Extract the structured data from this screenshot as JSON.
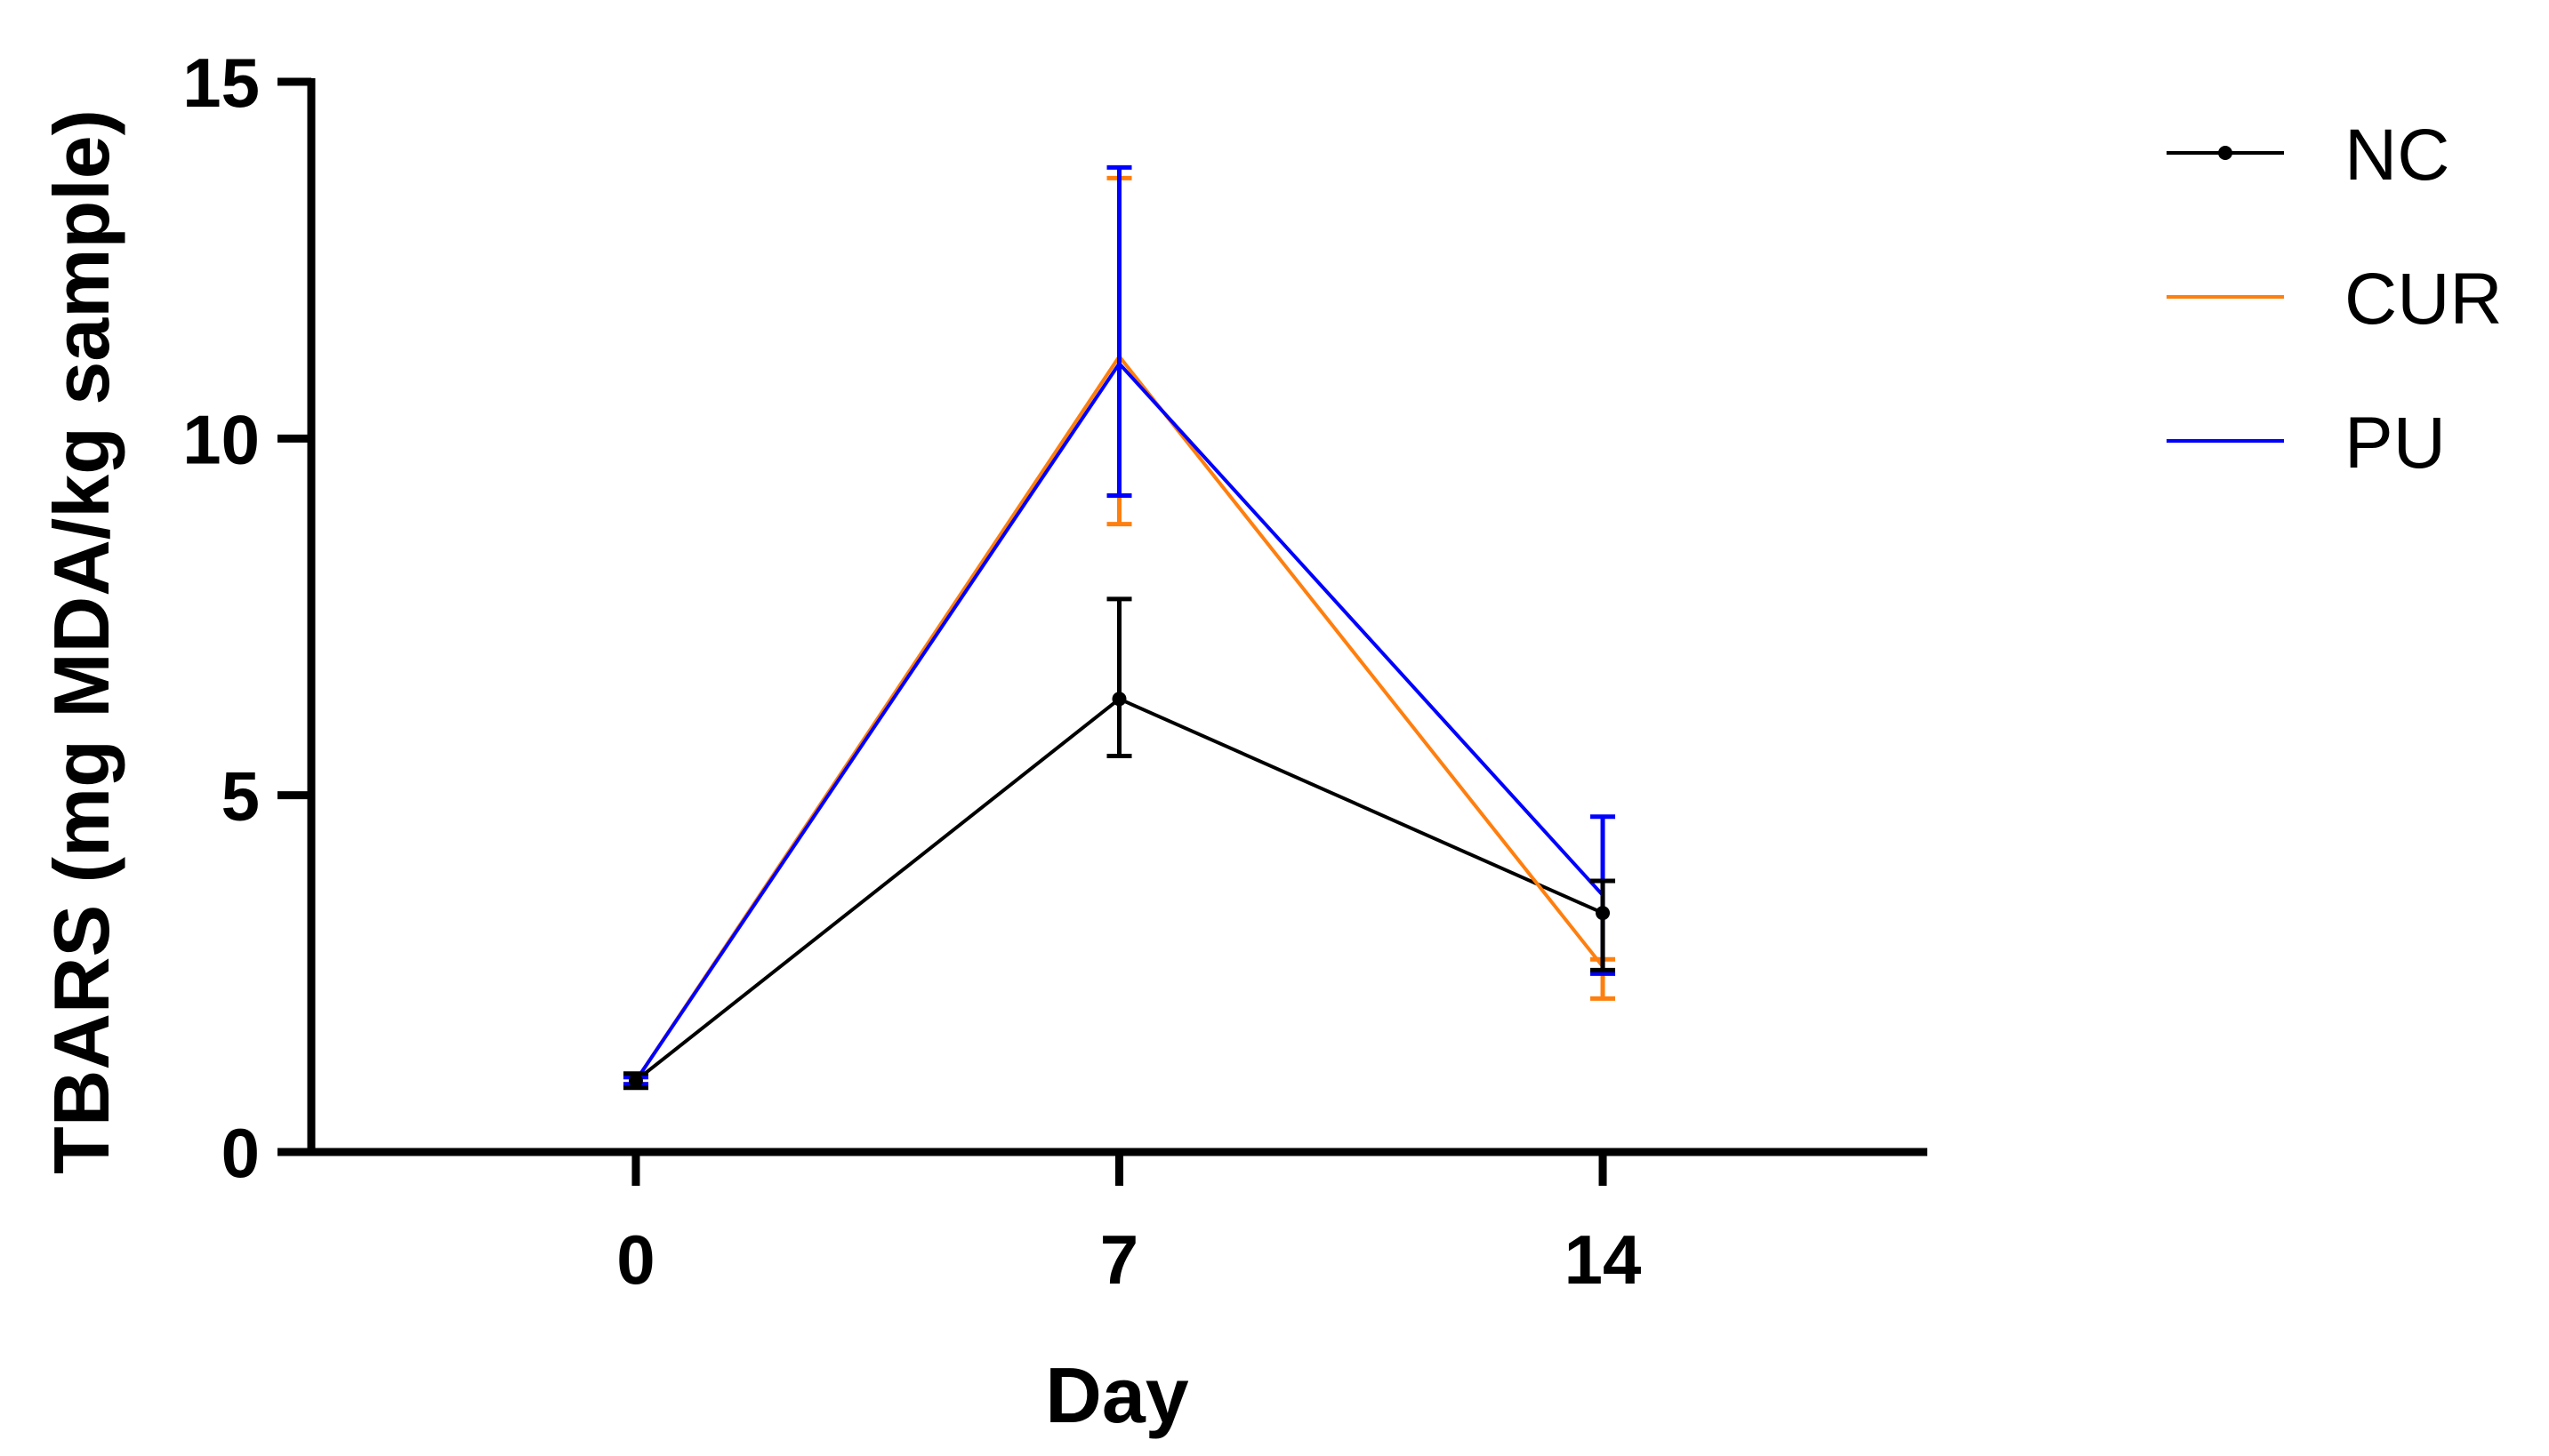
{
  "chart_data": {
    "type": "line",
    "xlabel": "Day",
    "ylabel": "TBARS (mg MDA/kg sample)",
    "x": [
      0,
      7,
      14
    ],
    "x_tick_labels": [
      "0",
      "7",
      "14"
    ],
    "xlim": [
      -4.7,
      18.7
    ],
    "ylim": [
      0,
      15
    ],
    "y_ticks": [
      0,
      5,
      10,
      15
    ],
    "y_tick_labels": [
      "0",
      "5",
      "10",
      "15"
    ],
    "grid": false,
    "legend_position": "top-right",
    "series": [
      {
        "name": "NC",
        "color": "#000000",
        "marker": "dot",
        "values": [
          1.0,
          6.35,
          3.35
        ],
        "err_low": [
          0.1,
          0.8,
          0.8
        ],
        "err_high": [
          0.1,
          1.4,
          0.45
        ]
      },
      {
        "name": "CUR",
        "color": "#ff7f0e",
        "marker": "none",
        "values": [
          1.0,
          11.15,
          2.6
        ],
        "err_low": [
          0.05,
          2.35,
          0.45
        ],
        "err_high": [
          0.05,
          2.5,
          0.1
        ]
      },
      {
        "name": "PU",
        "color": "#0000ff",
        "marker": "none",
        "values": [
          1.0,
          11.05,
          3.6
        ],
        "err_low": [
          0.05,
          1.85,
          1.1
        ],
        "err_high": [
          0.05,
          2.75,
          1.1
        ]
      }
    ]
  }
}
